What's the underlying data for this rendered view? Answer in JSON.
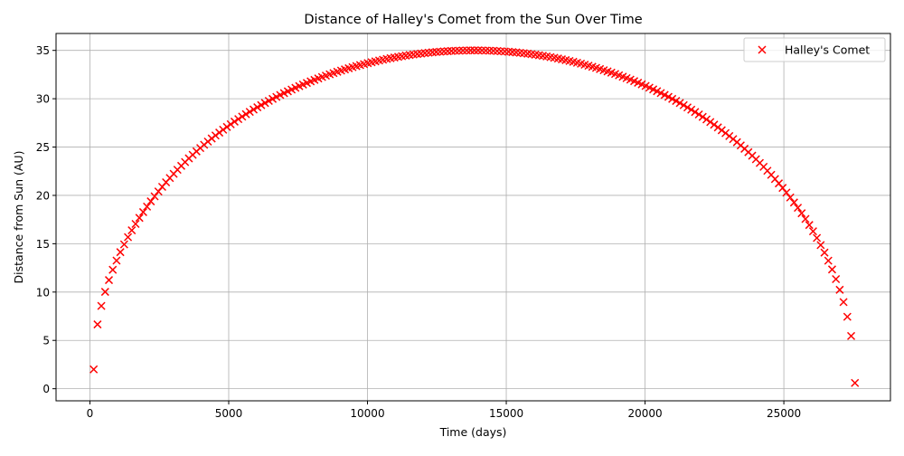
{
  "chart_data": {
    "type": "scatter",
    "title": "Distance of Halley's Comet from the Sun Over Time",
    "xlabel": "Time (days)",
    "ylabel": "Distance from Sun (AU)",
    "xlim": [
      -1220,
      28840
    ],
    "ylim": [
      -1.25,
      36.75
    ],
    "xticks": [
      0,
      5000,
      10000,
      15000,
      20000,
      25000
    ],
    "yticks": [
      0,
      5,
      10,
      15,
      20,
      25,
      30,
      35
    ],
    "grid": true,
    "legend_position": "top-right",
    "marker": "x",
    "series": [
      {
        "name": "Halley's Comet",
        "color": "#ff0000",
        "x": [
          137,
          6993,
          13849,
          20705,
          27561
        ],
        "y": [
          2.0,
          29.5,
          35.0,
          29.9,
          0.6
        ]
      }
    ]
  }
}
